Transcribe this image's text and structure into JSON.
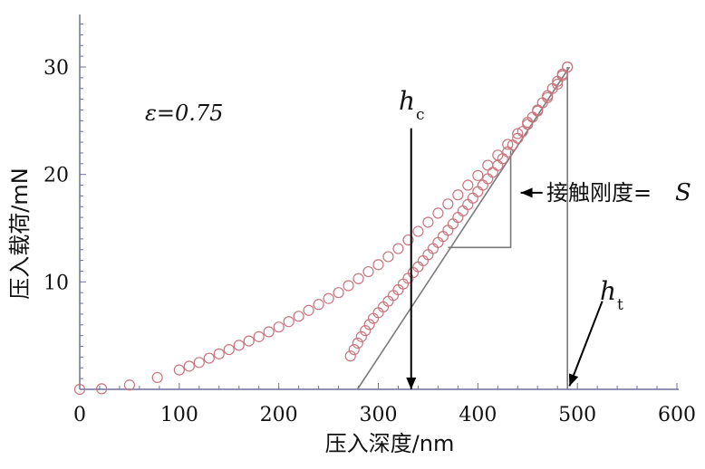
{
  "chart_data": {
    "type": "scatter",
    "xlabel": "压入深度/nm",
    "ylabel": "压入载荷/mN",
    "xlim": [
      0,
      600
    ],
    "ylim": [
      0,
      35
    ],
    "x_ticks": [
      0,
      100,
      200,
      300,
      400,
      500,
      600
    ],
    "y_ticks": [
      10,
      20,
      30
    ],
    "x_tick_labels": [
      "0",
      "100",
      "200",
      "300",
      "400",
      "500",
      "600"
    ],
    "y_tick_labels": [
      "10",
      "20",
      "30"
    ],
    "marker_color": "#c9747e",
    "line_color": "#7a7a7a",
    "annotations": {
      "epsilon": "ε=0.75",
      "hc": "h",
      "hc_sub": "c",
      "ht": "h",
      "ht_sub": "t",
      "stiffness": "接触刚度=",
      "stiffness_var": "S"
    },
    "series": [
      {
        "part": "loading",
        "x": [
          0,
          22,
          50,
          78,
          100,
          120,
          140,
          160,
          180,
          200,
          220,
          240,
          260,
          280,
          300,
          320,
          340,
          360,
          380,
          400,
          420,
          440,
          460,
          480,
          490
        ],
        "y": [
          0,
          0.05,
          0.4,
          1.1,
          1.8,
          2.5,
          3.3,
          4.1,
          4.9,
          5.8,
          6.8,
          7.9,
          9.0,
          10.3,
          11.6,
          13.1,
          14.7,
          16.4,
          18.1,
          19.9,
          21.8,
          23.8,
          25.9,
          28.4,
          30.0
        ]
      },
      {
        "part": "unloading",
        "x": [
          490,
          475,
          460,
          445,
          430,
          415,
          400,
          385,
          370,
          355,
          340,
          325,
          310,
          295,
          283,
          272
        ],
        "y": [
          30.0,
          28.0,
          26.0,
          24.0,
          22.1,
          20.2,
          18.4,
          16.6,
          14.8,
          13.1,
          11.4,
          9.8,
          8.2,
          6.6,
          4.9,
          3.1
        ]
      }
    ],
    "tangent_line": {
      "x": [
        279,
        492
      ],
      "y": [
        0,
        30
      ]
    },
    "slope_triangle": {
      "x1": 370,
      "y1": 13.2,
      "x2": 433,
      "y2": 22.2
    },
    "ht_line": {
      "x": 490,
      "y": [
        0,
        30
      ]
    },
    "hc_arrow": {
      "x": 333,
      "y_from": 24.3,
      "y_to": 0
    },
    "ht_arrow": {
      "from": [
        525,
        8.2
      ],
      "to": [
        492,
        0.3
      ]
    },
    "stiffness_arrow": {
      "from": [
        465,
        18.3
      ],
      "to": [
        443,
        18.3
      ]
    }
  }
}
